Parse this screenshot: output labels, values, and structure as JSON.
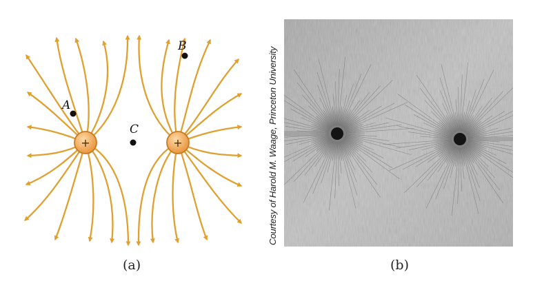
{
  "panel_a": {
    "points": [
      {
        "label": "A"
      },
      {
        "label": "B"
      },
      {
        "label": "C"
      }
    ],
    "charges": [
      {
        "sign": "+"
      },
      {
        "sign": "+"
      }
    ],
    "caption": "(a)",
    "colors": {
      "field_line": "#E0A030",
      "charge_fill": "#F2B26A",
      "charge_stroke": "#C87A22",
      "point": "#111111"
    }
  },
  "panel_b": {
    "caption": "(b)",
    "credit": "Courtesy of Harold M. Waage, Princeton University"
  }
}
